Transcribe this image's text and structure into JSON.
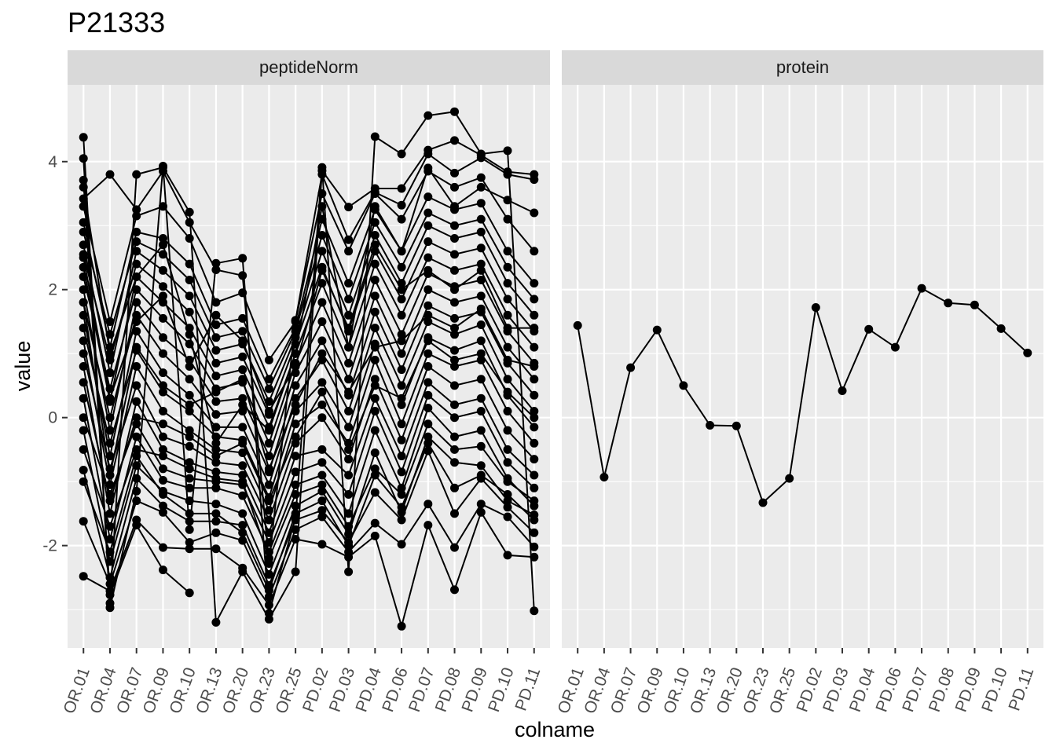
{
  "chart_data": {
    "type": "line",
    "title": "P21333",
    "xlabel": "colname",
    "ylabel": "value",
    "ylim": [
      -3.6,
      5.2
    ],
    "yticks": [
      -2,
      0,
      2,
      4
    ],
    "grid": true,
    "legend": "none",
    "colors": {
      "panel_bg": "#EBEBEB",
      "strip_bg": "#D9D9D9",
      "grid": "#FFFFFF",
      "line": "#000000",
      "point": "#000000"
    },
    "categories": [
      "OR.01",
      "OR.04",
      "OR.07",
      "OR.09",
      "OR.10",
      "OR.13",
      "OR.20",
      "OR.23",
      "OR.25",
      "PD.02",
      "PD.03",
      "PD.04",
      "PD.06",
      "PD.07",
      "PD.08",
      "PD.09",
      "PD.10",
      "PD.11"
    ],
    "facets": [
      {
        "strip": "peptideNorm",
        "series": [
          {
            "values": [
              4.38,
              -2.97,
              -1.15,
              3.93,
              -1.75,
              2.41,
              2.49,
              -3.06,
              -1.56,
              3.91,
              -2.41,
              4.39,
              4.12,
              4.72,
              4.78,
              4.12,
              4.17,
              -3.02
            ]
          },
          {
            "values": [
              4.05,
              -2.9,
              3.8,
              3.91,
              3.21,
              -3.2,
              -2.41,
              -3.15,
              -2.41,
              3.86,
              3.29,
              3.58,
              3.58,
              4.18,
              4.33,
              4.1,
              3.84,
              3.8
            ]
          },
          {
            "values": [
              3.42,
              3.8,
              3.25,
              3.85,
              3.05,
              2.31,
              2.22,
              -2.28,
              1.52,
              3.8,
              2.78,
              3.52,
              3.32,
              4.12,
              3.82,
              4.06,
              3.8,
              3.72
            ]
          },
          {
            "values": [
              3.71,
              -2.77,
              -1.68,
              -2.38,
              -2.74,
              null,
              null,
              null,
              null,
              null,
              null,
              null,
              null,
              null,
              null,
              null,
              null,
              null
            ]
          },
          {
            "values": [
              -2.48,
              -2.71,
              -1.6,
              -2.03,
              -2.05,
              -2.05,
              -2.35,
              -2.93,
              -1.9,
              -1.98,
              -2.18,
              -1.85,
              -3.26,
              -1.68,
              -2.69,
              -1.48,
              -2.15,
              -2.18
            ]
          },
          {
            "values": [
              -1.62,
              -2.6,
              -1.3,
              -1.48,
              -1.95,
              -1.8,
              -1.92,
              -2.8,
              -1.75,
              -1.55,
              -2.1,
              -1.65,
              -1.98,
              -1.35,
              -2.03,
              -1.35,
              -1.55,
              -2.02
            ]
          },
          {
            "values": [
              -0.82,
              -2.5,
              -0.95,
              -1.38,
              -1.62,
              -1.62,
              -1.68,
              -2.62,
              -1.6,
              -1.45,
              -1.95,
              -1.17,
              -1.6,
              -0.52,
              -1.5,
              -0.95,
              -1.4,
              -1.8
            ]
          },
          {
            "values": [
              -0.2,
              -2.25,
              -0.75,
              -1.15,
              -1.3,
              -1.35,
              -1.5,
              -2.45,
              -1.38,
              -1.15,
              -1.82,
              -0.55,
              -1.48,
              -0.3,
              -0.7,
              -0.75,
              -1.3,
              -1.52
            ]
          },
          {
            "values": [
              0.3,
              -1.9,
              -0.3,
              -0.98,
              -1.1,
              -1.1,
              -1.22,
              -2.1,
              -1.05,
              -0.9,
              -1.5,
              -0.2,
              -1.1,
              0.15,
              -0.3,
              -0.2,
              -0.95,
              -1.38
            ]
          },
          {
            "values": [
              0.8,
              -1.5,
              0.25,
              -0.5,
              -0.7,
              -0.85,
              -0.9,
              -1.8,
              -0.6,
              -0.5,
              -0.9,
              0.3,
              -0.6,
              0.55,
              0.2,
              0.3,
              -0.5,
              -0.9
            ]
          },
          {
            "values": [
              1.2,
              -1.05,
              0.8,
              0.1,
              -0.2,
              -0.5,
              -0.55,
              -1.45,
              -0.1,
              0.2,
              -0.4,
              0.9,
              -0.1,
              1.0,
              0.8,
              0.9,
              0.1,
              -0.4
            ]
          },
          {
            "values": [
              1.6,
              -0.6,
              1.35,
              0.7,
              0.35,
              -0.15,
              -0.15,
              -1.05,
              0.3,
              0.9,
              0.1,
              1.4,
              0.5,
              1.5,
              1.3,
              1.45,
              0.6,
              0.1
            ]
          },
          {
            "values": [
              2.0,
              -0.2,
              1.8,
              1.25,
              0.9,
              0.25,
              0.3,
              -0.6,
              0.7,
              1.5,
              0.6,
              1.9,
              1.0,
              2.0,
              1.8,
              1.9,
              1.1,
              0.6
            ]
          },
          {
            "values": [
              2.35,
              0.25,
              2.2,
              1.8,
              1.4,
              0.65,
              0.75,
              -0.15,
              1.0,
              2.1,
              1.1,
              2.4,
              1.6,
              2.5,
              2.3,
              2.4,
              1.6,
              1.1
            ]
          },
          {
            "values": [
              2.7,
              0.7,
              2.6,
              2.3,
              1.9,
              1.05,
              1.15,
              0.25,
              1.25,
              2.6,
              1.6,
              2.85,
              2.1,
              3.0,
              2.8,
              2.9,
              2.1,
              1.6
            ]
          },
          {
            "values": [
              3.05,
              1.1,
              2.9,
              2.8,
              2.4,
              1.45,
              1.55,
              0.6,
              1.4,
              3.1,
              2.1,
              3.25,
              2.6,
              3.45,
              3.25,
              3.35,
              2.6,
              2.1
            ]
          },
          {
            "values": [
              3.3,
              1.5,
              3.15,
              3.3,
              2.8,
              1.8,
              1.95,
              0.9,
              1.5,
              3.5,
              2.6,
              3.5,
              3.1,
              3.85,
              3.6,
              3.75,
              3.1,
              2.6
            ]
          },
          {
            "values": [
              0.0,
              -1.2,
              -0.1,
              -0.8,
              -0.95,
              -1.0,
              -1.05,
              -1.95,
              -0.85,
              -0.7,
              -1.2,
              0.1,
              -0.85,
              0.35,
              0.0,
              0.1,
              -0.7,
              -1.1
            ]
          },
          {
            "values": [
              1.0,
              -0.8,
              0.5,
              -0.3,
              -0.45,
              -0.7,
              -0.75,
              -1.6,
              -0.4,
              0.0,
              -0.65,
              0.6,
              -0.35,
              0.8,
              0.5,
              0.6,
              -0.2,
              -0.65
            ]
          },
          {
            "values": [
              1.4,
              -0.4,
              1.05,
              0.4,
              0.1,
              -0.3,
              -0.35,
              -1.25,
              0.1,
              0.55,
              -0.15,
              1.15,
              0.2,
              1.25,
              1.05,
              1.2,
              0.35,
              -0.15
            ]
          },
          {
            "values": [
              1.8,
              0.0,
              1.6,
              1.0,
              0.6,
              0.05,
              0.1,
              -0.85,
              0.5,
              1.2,
              0.35,
              1.65,
              0.75,
              1.75,
              1.55,
              1.65,
              0.85,
              0.35
            ]
          },
          {
            "values": [
              2.2,
              0.45,
              2.0,
              1.55,
              1.15,
              0.45,
              0.55,
              -0.4,
              0.85,
              1.8,
              0.85,
              2.15,
              1.3,
              2.25,
              2.05,
              2.15,
              1.35,
              0.85
            ]
          },
          {
            "values": [
              2.55,
              0.9,
              2.4,
              2.05,
              1.65,
              0.85,
              0.95,
              0.05,
              1.15,
              2.35,
              1.35,
              2.6,
              1.85,
              2.75,
              2.55,
              2.65,
              1.85,
              1.35
            ]
          },
          {
            "values": [
              2.9,
              1.3,
              2.75,
              2.55,
              2.15,
              1.25,
              1.35,
              0.45,
              1.35,
              2.85,
              1.85,
              3.05,
              2.35,
              3.2,
              3.0,
              3.1,
              2.35,
              1.85
            ]
          },
          {
            "values": [
              -0.5,
              -1.7,
              -0.5,
              -0.6,
              -0.8,
              -0.95,
              -1.0,
              -2.2,
              -1.2,
              -1.05,
              -1.7,
              -0.8,
              -1.2,
              -0.1,
              -0.5,
              -0.45,
              -1.0,
              -1.3
            ]
          },
          {
            "values": [
              0.55,
              -1.3,
              0.0,
              -0.1,
              -0.3,
              -0.6,
              -0.4,
              -1.3,
              -0.3,
              0.4,
              -0.5,
              0.5,
              0.3,
              1.2,
              0.9,
              1.0,
              0.4,
              0.0
            ]
          },
          {
            "values": [
              1.8,
              -0.9,
              1.1,
              0.5,
              0.2,
              0.4,
              0.6,
              -0.8,
              0.2,
              1.0,
              0.4,
              1.1,
              1.2,
              1.6,
              1.4,
              1.7,
              0.9,
              0.8
            ]
          },
          {
            "values": [
              2.5,
              0.3,
              1.5,
              1.9,
              0.8,
              1.6,
              1.2,
              0.1,
              0.8,
              2.3,
              1.4,
              2.7,
              2.0,
              2.3,
              2.0,
              2.3,
              1.4,
              1.4
            ]
          },
          {
            "values": [
              3.6,
              1.0,
              2.2,
              2.7,
              1.3,
              -0.4,
              0.2,
              -0.2,
              1.0,
              3.3,
              1.1,
              3.3,
              2.6,
              3.9,
              3.3,
              3.6,
              3.4,
              3.2
            ]
          },
          {
            "values": [
              -1.0,
              -2.1,
              -0.6,
              -1.2,
              -1.5,
              -1.5,
              -1.8,
              -2.7,
              -1.5,
              -1.3,
              -2.0,
              -0.9,
              -1.4,
              -0.4,
              -1.1,
              -0.9,
              -1.2,
              -1.6
            ]
          }
        ]
      },
      {
        "strip": "protein",
        "series": [
          {
            "values": [
              1.44,
              -0.93,
              0.78,
              1.37,
              0.5,
              -0.12,
              -0.13,
              -1.33,
              -0.95,
              1.72,
              0.42,
              1.38,
              1.1,
              2.02,
              1.79,
              1.76,
              1.39,
              1.01
            ]
          }
        ]
      }
    ]
  }
}
